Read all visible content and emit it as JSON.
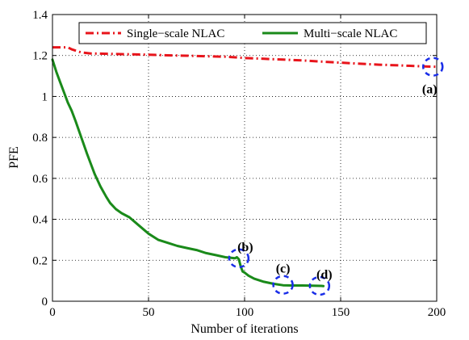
{
  "chart_data": {
    "type": "line",
    "xlabel": "Number of iterations",
    "ylabel": "PFE",
    "xlim": [
      0,
      200
    ],
    "ylim": [
      0,
      1.4
    ],
    "xticks": [
      0,
      50,
      100,
      150,
      200
    ],
    "xtick_labels": [
      "0",
      "50",
      "100",
      "150",
      "200"
    ],
    "yticks": [
      0,
      0.2,
      0.4,
      0.6,
      0.8,
      1,
      1.2,
      1.4
    ],
    "ytick_labels": [
      "0",
      "0.2",
      "0.4",
      "0.6",
      "0.8",
      "1",
      "1.2",
      "1.4"
    ],
    "grid": true,
    "legend_position": "top-right",
    "series": [
      {
        "name": "Single−scale NLAC",
        "color": "#e8141b",
        "line_style": "dash-dot",
        "x": [
          0,
          5,
          8,
          10,
          15,
          20,
          30,
          40,
          50,
          60,
          70,
          80,
          90,
          100,
          110,
          120,
          130,
          140,
          150,
          160,
          170,
          180,
          190,
          195,
          200
        ],
        "y": [
          1.24,
          1.24,
          1.24,
          1.23,
          1.215,
          1.21,
          1.208,
          1.206,
          1.204,
          1.201,
          1.199,
          1.196,
          1.194,
          1.188,
          1.184,
          1.18,
          1.176,
          1.17,
          1.165,
          1.16,
          1.155,
          1.152,
          1.148,
          1.146,
          1.145
        ]
      },
      {
        "name": "Multi−scale NLAC",
        "color": "#1a8a1a",
        "line_style": "solid",
        "x": [
          0,
          1,
          2,
          4,
          6,
          8,
          10,
          12,
          15,
          18,
          20,
          22,
          25,
          28,
          30,
          33,
          36,
          40,
          45,
          50,
          55,
          60,
          65,
          70,
          75,
          80,
          85,
          90,
          95,
          96,
          97,
          98,
          99,
          100,
          102,
          105,
          110,
          115,
          120,
          125,
          130,
          135,
          140,
          141
        ],
        "y": [
          1.18,
          1.15,
          1.12,
          1.07,
          1.02,
          0.97,
          0.93,
          0.88,
          0.8,
          0.72,
          0.67,
          0.62,
          0.56,
          0.51,
          0.48,
          0.45,
          0.43,
          0.41,
          0.37,
          0.33,
          0.3,
          0.285,
          0.27,
          0.26,
          0.25,
          0.235,
          0.225,
          0.215,
          0.21,
          0.215,
          0.205,
          0.17,
          0.145,
          0.14,
          0.125,
          0.11,
          0.095,
          0.085,
          0.078,
          0.077,
          0.077,
          0.076,
          0.075,
          0.074
        ]
      }
    ],
    "annotations": [
      {
        "label": "(a)",
        "x": 198,
        "y": 1.145
      },
      {
        "label": "(b)",
        "x": 97,
        "y": 0.21
      },
      {
        "label": "(c)",
        "x": 120,
        "y": 0.08
      },
      {
        "label": "(d)",
        "x": 139,
        "y": 0.075
      }
    ],
    "annotation_marker_color": "#1a2ee8"
  }
}
